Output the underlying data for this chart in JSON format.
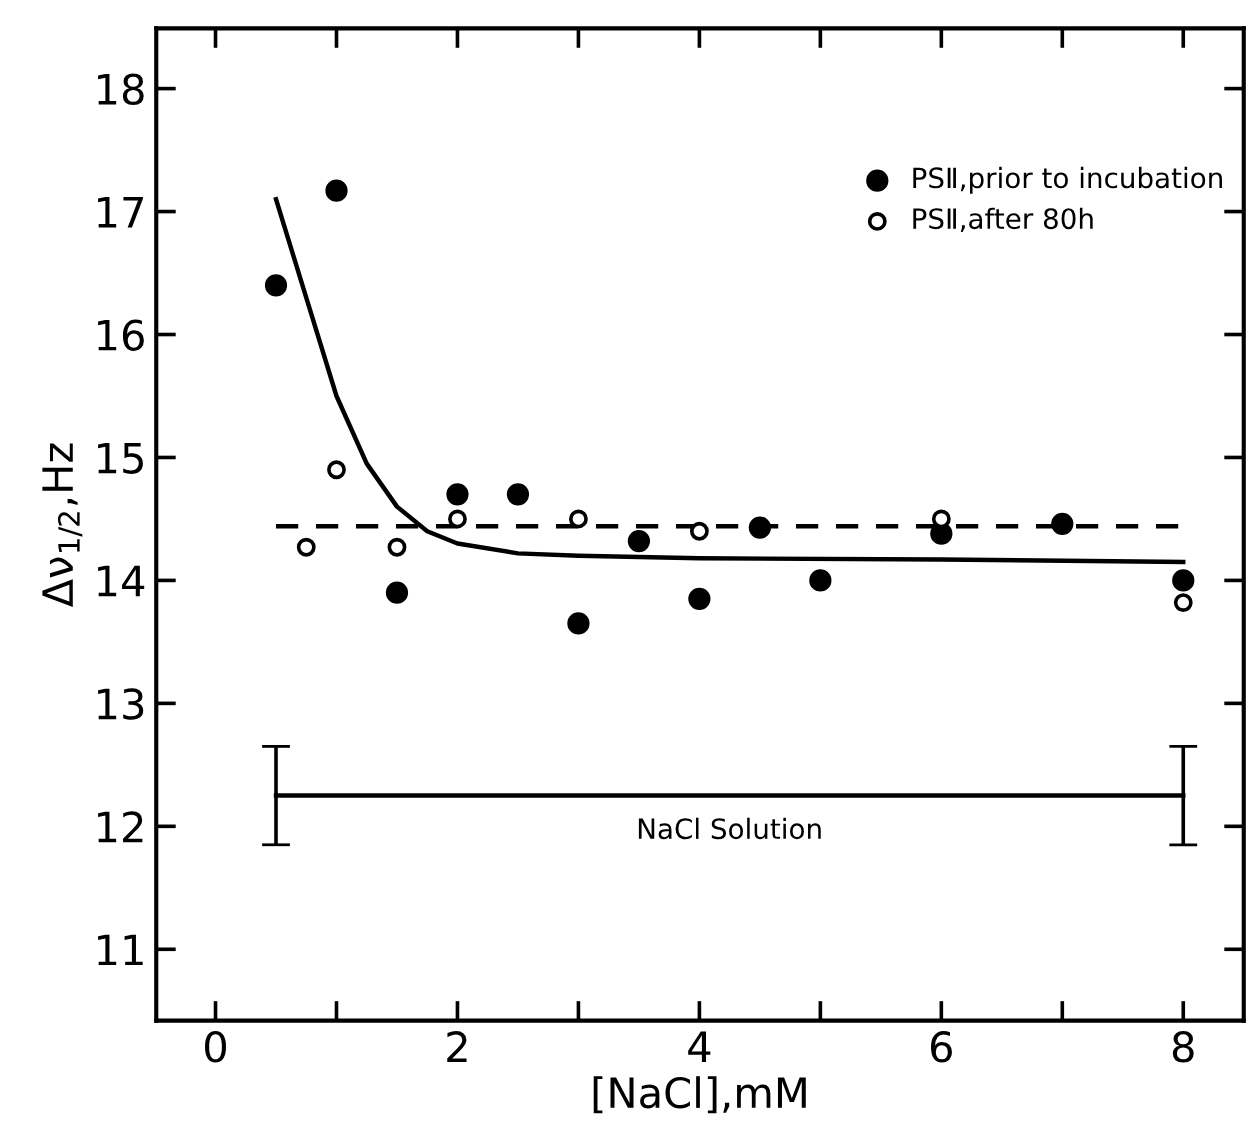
{
  "chart_data": {
    "type": "scatter",
    "xlabel": "[NaCl],mM",
    "ylabel": "Δν$_{1/2}$,Hz",
    "xlim": [
      -0.49,
      8.5
    ],
    "ylim": [
      10.42,
      18.49
    ],
    "xticks": [
      0,
      {
        "value": 1,
        "label": null
      },
      2,
      {
        "value": 3,
        "label": null
      },
      4,
      {
        "value": 5,
        "label": null
      },
      6,
      {
        "value": 7,
        "label": null
      },
      8
    ],
    "yticks": [
      11,
      12,
      13,
      14,
      15,
      16,
      17,
      18
    ],
    "legend": "top right",
    "grid": false,
    "series": [
      {
        "name": "PSⅡ,prior to incubation",
        "color": "#000000",
        "marker": "circle",
        "x": [
          0.5,
          1,
          1.5,
          2,
          2.5,
          3,
          3.5,
          4,
          4.5,
          5,
          6,
          7,
          8
        ],
        "values": [
          16.4,
          17.17,
          13.9,
          14.7,
          14.7,
          13.65,
          14.32,
          13.85,
          14.43,
          14.0,
          14.38,
          14.46,
          14.0
        ]
      },
      {
        "name": "PSⅡ,after 80h",
        "color": "#ffffff",
        "marker": "circle",
        "x": [
          0.75,
          1,
          1.5,
          2,
          3,
          4,
          6,
          8
        ],
        "values": [
          14.27,
          14.9,
          14.27,
          14.5,
          14.5,
          14.4,
          14.5,
          13.82
        ]
      },
      {
        "type": "line",
        "color": "#000000",
        "line_style": "solid",
        "marker": "none",
        "x": [
          0.5,
          0.75,
          1,
          1.25,
          1.5,
          1.75,
          2,
          2.5,
          3,
          4,
          6,
          8
        ],
        "values": [
          17.1,
          16.3,
          15.5,
          14.95,
          14.6,
          14.4,
          14.3,
          14.22,
          14.2,
          14.18,
          14.17,
          14.15
        ]
      },
      {
        "type": "line",
        "color": "#000000",
        "line_style": "dashed",
        "marker": "none",
        "x": [
          0.5,
          8
        ],
        "values": [
          14.44,
          14.44
        ]
      },
      {
        "type": "line",
        "name": "NaCl Solution",
        "color": "#000000",
        "line_style": "solid",
        "marker": "none",
        "x": [
          0.5,
          8
        ],
        "values": [
          12.25,
          12.25
        ],
        "errors": [
          0.4,
          0.4
        ]
      }
    ]
  }
}
